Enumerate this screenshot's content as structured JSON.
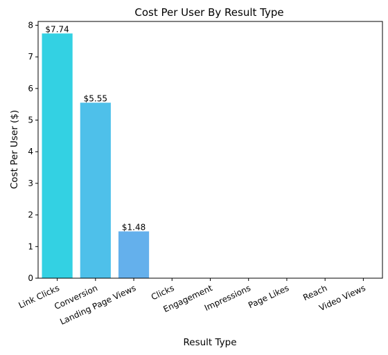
{
  "chart_data": {
    "type": "bar",
    "title": "Cost Per User By Result Type",
    "xlabel": "Result Type",
    "ylabel": "Cost Per User ($)",
    "ylim": [
      0,
      8.12
    ],
    "yticks": [
      0,
      1,
      2,
      3,
      4,
      5,
      6,
      7,
      8
    ],
    "grid": false,
    "categories": [
      "Link Clicks",
      "Conversion",
      "Landing Page Views",
      "Clicks",
      "Engagement",
      "Impressions",
      "Page Likes",
      "Reach",
      "Video Views"
    ],
    "values": [
      7.74,
      5.55,
      1.48,
      0,
      0,
      0,
      0,
      0,
      0
    ],
    "data_labels": [
      "$7.74",
      "$5.55",
      "$1.48",
      "",
      "",
      "",
      "",
      "",
      ""
    ],
    "colors": [
      "#33d1e3",
      "#4ec0ea",
      "#64b0ec",
      "#7aa3ee",
      "#8f96ee",
      "#a08cef",
      "#b082ef",
      "#c07af0",
      "#cf72f0"
    ]
  }
}
